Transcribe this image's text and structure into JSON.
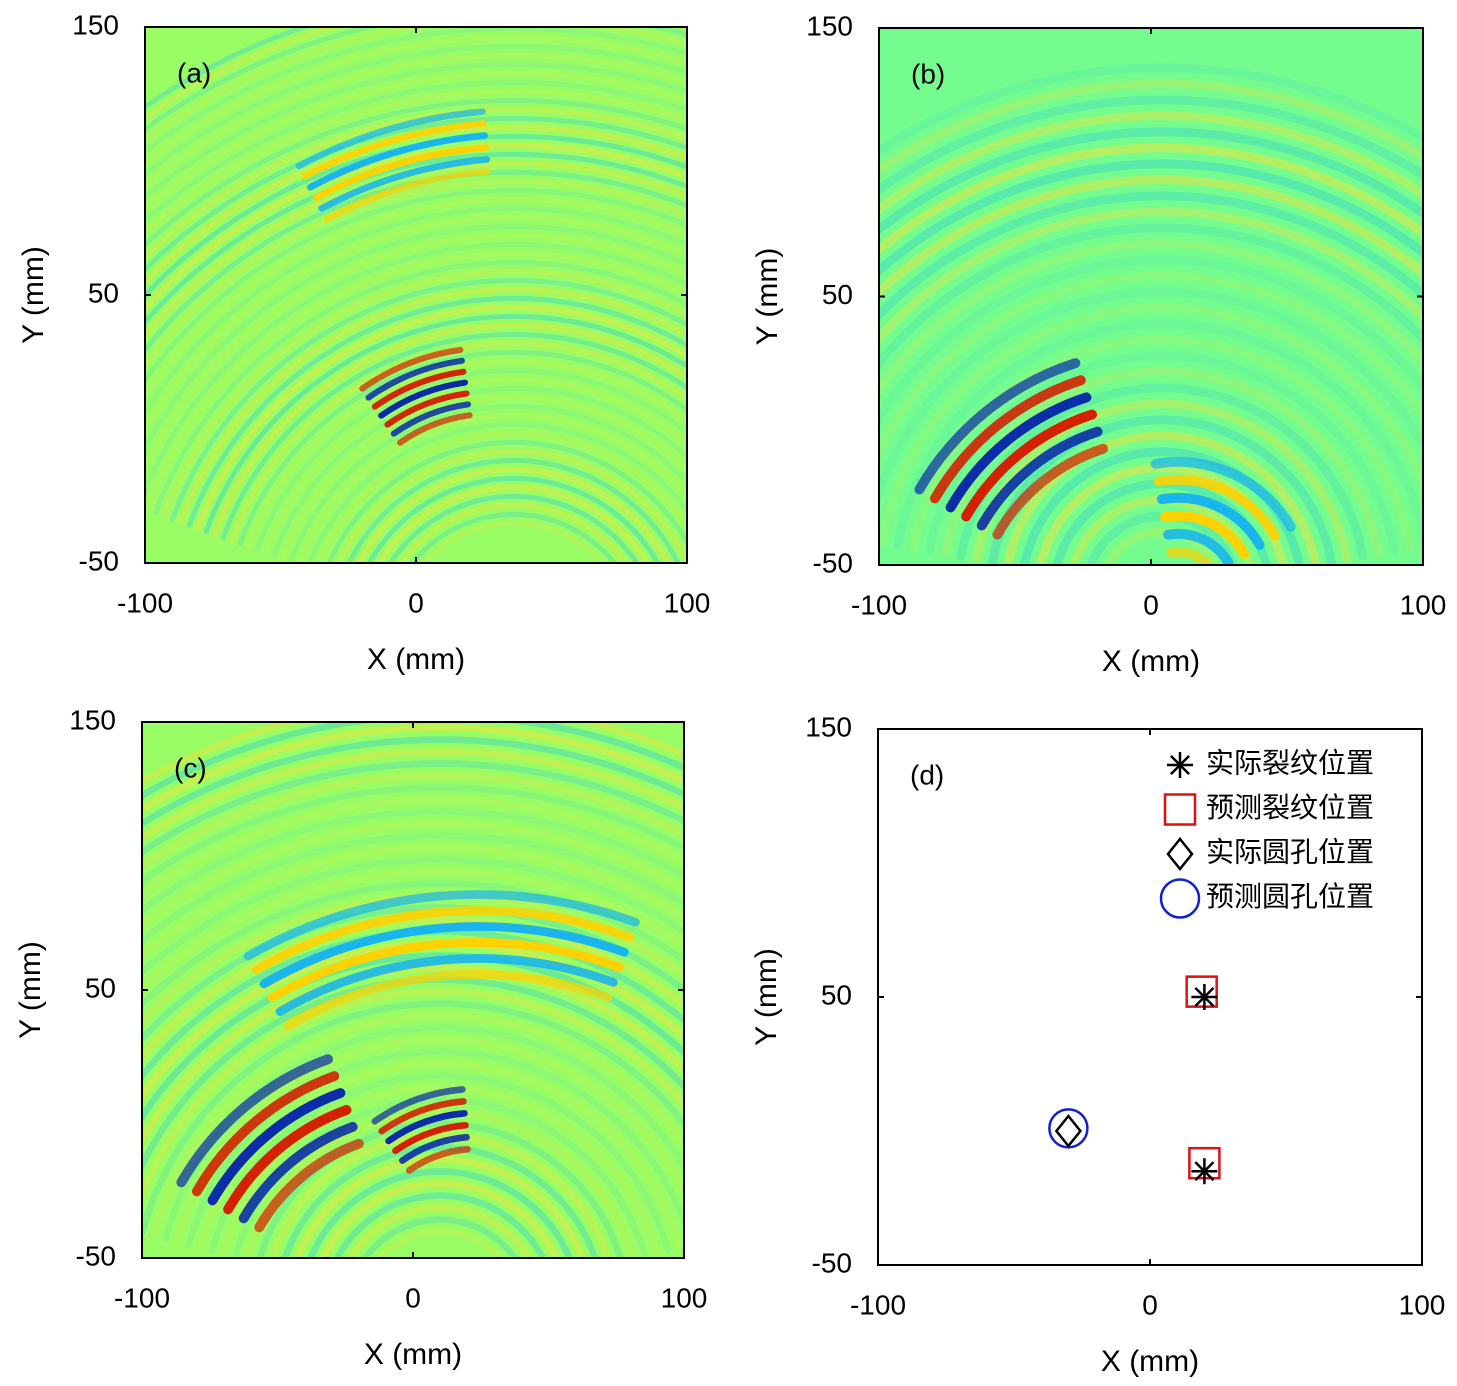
{
  "chart_data": [
    {
      "type": "image",
      "title": "(a)",
      "xlabel": "X (mm)",
      "ylabel": "Y (mm)",
      "xlim": [
        -100,
        100
      ],
      "ylim": [
        -50,
        150
      ],
      "xticks": [
        -100,
        0,
        100
      ],
      "yticks": [
        -50,
        50,
        150
      ]
    },
    {
      "type": "image",
      "title": "(b)",
      "xlabel": "X (mm)",
      "ylabel": "Y (mm)",
      "xlim": [
        -100,
        100
      ],
      "ylim": [
        -50,
        150
      ],
      "xticks": [
        -100,
        0,
        100
      ],
      "yticks": [
        -50,
        50,
        150
      ]
    },
    {
      "type": "image",
      "title": "(c)",
      "xlabel": "X (mm)",
      "ylabel": "Y (mm)",
      "xlim": [
        -100,
        100
      ],
      "ylim": [
        -50,
        150
      ],
      "xticks": [
        -100,
        0,
        100
      ],
      "yticks": [
        -50,
        50,
        150
      ]
    },
    {
      "type": "scatter",
      "title": "(d)",
      "xlabel": "X (mm)",
      "ylabel": "Y (mm)",
      "xlim": [
        -100,
        100
      ],
      "ylim": [
        -50,
        150
      ],
      "xticks": [
        -100,
        0,
        100
      ],
      "yticks": [
        -50,
        50,
        150
      ],
      "legend": "upper right",
      "series": [
        {
          "name": "实际裂纹位置",
          "marker": "star",
          "color": "#000000",
          "x": [
            20,
            20
          ],
          "values": [
            50,
            -15
          ]
        },
        {
          "name": "预测裂纹位置",
          "marker": "square",
          "color": "#dd1111",
          "x": [
            19,
            20
          ],
          "values": [
            52,
            -12
          ]
        },
        {
          "name": "实际圆孔位置",
          "marker": "diamond",
          "color": "#000000",
          "x": [
            -30
          ],
          "values": [
            0
          ]
        },
        {
          "name": "预测圆孔位置",
          "marker": "circle",
          "color": "#1122cc",
          "x": [
            -30
          ],
          "values": [
            1
          ]
        }
      ]
    }
  ]
}
